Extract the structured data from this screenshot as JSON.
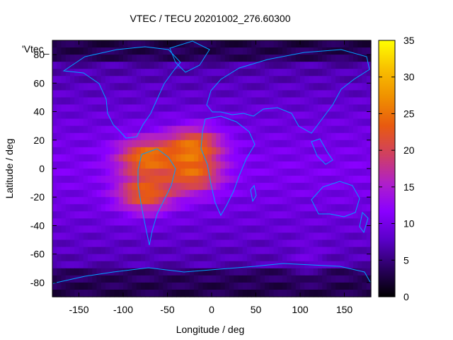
{
  "chart_data": {
    "type": "heatmap",
    "title": "VTEC / TECU 20201002_276.60300",
    "xlabel": "Longitude / deg",
    "ylabel": "Latitude / deg",
    "xlim": [
      -180,
      180
    ],
    "ylim": [
      -90,
      90
    ],
    "x_ticks": [
      -150,
      -100,
      -50,
      0,
      50,
      100,
      150
    ],
    "y_ticks": [
      -80,
      -60,
      -40,
      -20,
      0,
      20,
      40,
      60,
      80
    ],
    "colorbar": {
      "range": [
        0,
        35
      ],
      "ticks": [
        0,
        5,
        10,
        15,
        20,
        25,
        30,
        35
      ],
      "palette": [
        "#000000",
        "#2a0060",
        "#5a00c8",
        "#8a00ff",
        "#b020c8",
        "#d04060",
        "#e85a10",
        "#f09000",
        "#f8c000",
        "#ffff00"
      ]
    },
    "overlay_label": "'Vtec_",
    "background_level": 8,
    "enhancements": [
      {
        "name": "equatorial-anomaly-west",
        "lon": -75,
        "lat": 8,
        "peak": 27
      },
      {
        "name": "equatorial-anomaly-west-south",
        "lon": -75,
        "lat": -18,
        "peak": 26
      },
      {
        "name": "equatorial-anomaly-east",
        "lon": -20,
        "lat": 16,
        "peak": 27
      },
      {
        "name": "equatorial-anomaly-east-south",
        "lon": -20,
        "lat": -5,
        "peak": 24
      }
    ],
    "coastline_color": "#00a0ff"
  }
}
